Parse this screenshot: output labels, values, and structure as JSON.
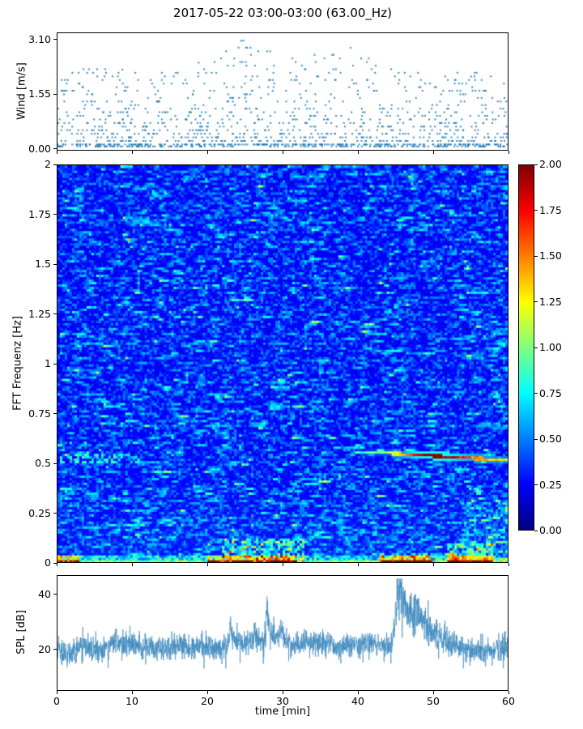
{
  "figure": {
    "title": "2017-05-22 03:00-03:00 (63.00_Hz)"
  },
  "chart_data": [
    {
      "type": "scatter",
      "id": "wind",
      "title": "",
      "ylabel": "Wind [m/s]",
      "ytick_labels": [
        "0.00",
        "1.55",
        "3.10"
      ],
      "ytick_values": [
        0.0,
        1.55,
        3.1
      ],
      "ylim": [
        -0.05,
        3.3
      ],
      "xlim": [
        0,
        60
      ],
      "marker_color": "#1f77b4",
      "marker_size": 2,
      "n_points": 1300,
      "seed": 11,
      "quantize_step": 0.103,
      "description": "Wind speed scatter over 60 min; mostly 0.1-1.5 m/s, gusts to 3.1 m/s near minute 25-28",
      "gust_envelope": {
        "x": [
          0,
          5,
          10,
          15,
          20,
          25,
          30,
          35,
          40,
          45,
          50,
          55,
          60
        ],
        "max_ms": [
          2.3,
          2.4,
          2.2,
          2.3,
          2.5,
          3.15,
          2.6,
          2.9,
          2.9,
          2.3,
          2.2,
          2.2,
          2.1
        ]
      }
    },
    {
      "type": "heatmap",
      "id": "spectrogram",
      "ylabel": "FFT Frequenz [Hz]",
      "ytick_labels": [
        "0",
        "0.25",
        "0.5",
        "0.75",
        "1",
        "1.25",
        "1.5",
        "1.75",
        "2"
      ],
      "ytick_values": [
        0,
        0.25,
        0.5,
        0.75,
        1,
        1.25,
        1.5,
        1.75,
        2
      ],
      "ylim": [
        0,
        2
      ],
      "xlim": [
        0,
        60
      ],
      "colormap": "jet",
      "clim": [
        0,
        2
      ],
      "colorbar_tick_labels": [
        "0.00",
        "0.25",
        "0.50",
        "0.75",
        "1.00",
        "1.25",
        "1.50",
        "1.75",
        "2.00"
      ],
      "colorbar_tick_values": [
        0,
        0.25,
        0.5,
        0.75,
        1,
        1.25,
        1.5,
        1.75,
        2
      ],
      "grid": {
        "nx": 186,
        "ny": 164
      },
      "seed": 5,
      "description": "Mostly blue noise floor ~0.2-0.5 with cyan streaks; hot band at lowest frequencies; descending tonal track near 0.55 Hz from minute 41 to 60",
      "features": {
        "surface_noise_band": {
          "freq_max": 0.032,
          "hot_segments_min": [
            [
              0,
              3
            ],
            [
              20,
              32
            ],
            [
              43,
              50
            ],
            [
              52,
              58
            ]
          ]
        },
        "low_freq_blobs": [
          {
            "x": [
              22,
              33
            ],
            "freq_max": 0.12,
            "boost": 0.5
          },
          {
            "x": [
              43,
              50
            ],
            "freq_max": 0.05,
            "boost": 0.45
          },
          {
            "x": [
              52,
              58
            ],
            "freq_max": 0.1,
            "boost": 0.4
          },
          {
            "x": [
              54,
              60
            ],
            "freq_max": 0.3,
            "boost": 0.22
          }
        ],
        "tonal_track": {
          "x_start": 41,
          "x_end": 60,
          "freq_start": 0.558,
          "freq_end": 0.516,
          "intensity_x": [
            41,
            44,
            46,
            48,
            50,
            53,
            55,
            58,
            60
          ],
          "intensity_v": [
            0.8,
            1.0,
            1.4,
            1.9,
            2.0,
            1.8,
            1.5,
            1.3,
            1.2
          ]
        },
        "left_edge_dashes": {
          "x": [
            0,
            10
          ],
          "freq": [
            0.505,
            0.55
          ],
          "value": 0.8,
          "density": 0.35
        }
      }
    },
    {
      "type": "line",
      "id": "spl",
      "ylabel": "SPL [dB]",
      "xlabel": "time [min]",
      "ytick_labels": [
        "20",
        "40"
      ],
      "ytick_values": [
        20,
        40
      ],
      "xtick_labels": [
        "0",
        "10",
        "20",
        "30",
        "40",
        "50",
        "60"
      ],
      "xtick_values": [
        0,
        10,
        20,
        30,
        40,
        50,
        60
      ],
      "ylim": [
        5,
        47
      ],
      "xlim": [
        0,
        60
      ],
      "line_color": "#3a87bd",
      "n_samples": 2400,
      "seed": 23,
      "baseline_db": 20,
      "noise_sigma_db": 2.1,
      "value_range_db": [
        13,
        46
      ],
      "description": "Noisy SPL trace around 20 dB; spikes near minutes 23-30; main peak ~46 dB at minute 45.5 decaying to ~50 min",
      "events": [
        {
          "t_min": 23.1,
          "amp_db": 8,
          "rise_min": 0.15,
          "decay_min": 0.4
        },
        {
          "t_min": 26.3,
          "amp_db": 6,
          "rise_min": 0.1,
          "decay_min": 0.25
        },
        {
          "t_min": 27.9,
          "amp_db": 13,
          "rise_min": 0.1,
          "decay_min": 0.3
        },
        {
          "t_min": 29.8,
          "amp_db": 7,
          "rise_min": 0.12,
          "decay_min": 0.3
        },
        {
          "t_min": 45.5,
          "amp_db": 22,
          "rise_min": 0.45,
          "decay_min": 2.3
        },
        {
          "t_min": 48.0,
          "amp_db": 5,
          "rise_min": 0.8,
          "decay_min": 1.8
        }
      ]
    }
  ]
}
